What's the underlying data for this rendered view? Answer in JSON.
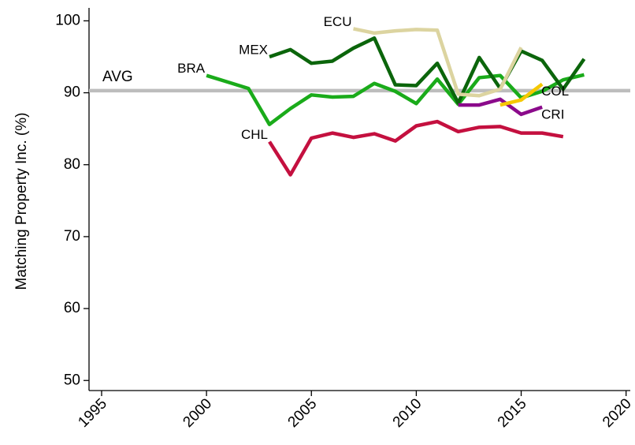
{
  "chart_data": {
    "type": "line",
    "y_label": "Matching Property Inc. (%)",
    "xlim": [
      1994.4,
      2020.2
    ],
    "ylim": [
      48.6,
      101.8
    ],
    "xticks": [
      1995,
      2000,
      2005,
      2010,
      2015,
      2020
    ],
    "yticks": [
      50,
      60,
      70,
      80,
      90,
      100
    ],
    "grid": false,
    "hline": {
      "value": 90.3,
      "label": "AVG",
      "color": "#bdbdbd"
    },
    "series": [
      {
        "name": "BRA",
        "color": "#1aab1a",
        "x": [
          2000,
          2001,
          2002,
          2003,
          2004,
          2005,
          2006,
          2007,
          2008,
          2009,
          2010,
          2011,
          2012,
          2013,
          2014,
          2015,
          2016,
          2017,
          2018
        ],
        "values": [
          92.4,
          91.5,
          90.6,
          85.6,
          87.8,
          89.7,
          89.4,
          89.5,
          91.3,
          90.2,
          88.5,
          91.9,
          88.4,
          92.1,
          92.4,
          89.3,
          90.2,
          91.8,
          92.5
        ]
      },
      {
        "name": "MEX",
        "color": "#0b650b",
        "x": [
          2003,
          2004,
          2005,
          2006,
          2007,
          2008,
          2009,
          2010,
          2011,
          2012,
          2013,
          2014,
          2015,
          2016,
          2017,
          2018
        ],
        "values": [
          95.0,
          96.0,
          94.1,
          94.4,
          96.2,
          97.6,
          91.1,
          91.0,
          94.1,
          88.6,
          94.9,
          90.6,
          95.8,
          94.5,
          90.5,
          94.7
        ]
      },
      {
        "name": "ECU",
        "color": "#dcd4a0",
        "x": [
          2007,
          2008,
          2009,
          2010,
          2011,
          2012,
          2013,
          2014,
          2015
        ],
        "values": [
          98.9,
          98.3,
          98.6,
          98.8,
          98.7,
          89.8,
          89.6,
          90.5,
          96.3
        ]
      },
      {
        "name": "CHL",
        "color": "#c4103f",
        "x": [
          2003,
          2004,
          2005,
          2006,
          2007,
          2008,
          2009,
          2010,
          2011,
          2012,
          2013,
          2014,
          2015,
          2016,
          2017
        ],
        "values": [
          83.2,
          78.6,
          83.7,
          84.4,
          83.8,
          84.3,
          83.3,
          85.4,
          86.0,
          84.6,
          85.2,
          85.3,
          84.4,
          84.4,
          83.9
        ]
      },
      {
        "name": "CRI",
        "color": "#8b0a8b",
        "x": [
          2012,
          2013,
          2014,
          2015,
          2016
        ],
        "values": [
          88.3,
          88.3,
          89.1,
          87.0,
          88.0
        ]
      },
      {
        "name": "COL",
        "color": "#f5c800",
        "x": [
          2014,
          2015,
          2016
        ],
        "values": [
          88.3,
          89.0,
          91.2
        ]
      }
    ]
  }
}
